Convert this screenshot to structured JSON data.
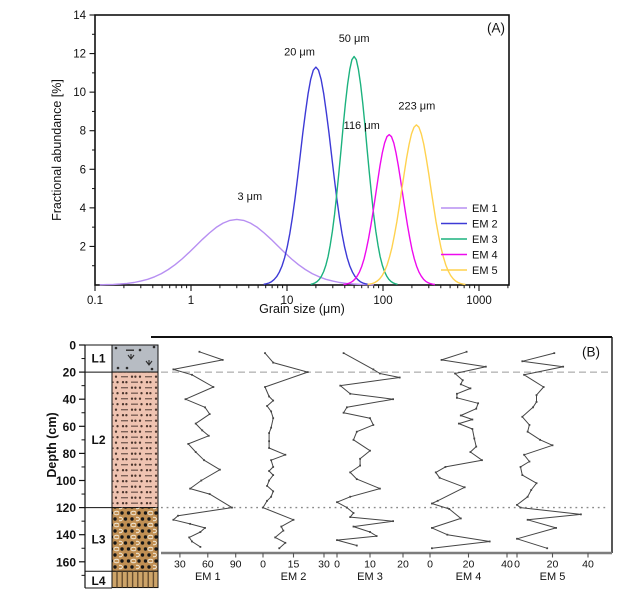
{
  "figure": {
    "panel_a_label": "(A)",
    "panel_b_label": "(B)"
  },
  "chart_data": [
    {
      "id": "panel_a",
      "type": "line",
      "title": "",
      "xlabel": "Grain size (μm)",
      "ylabel": "Fractional abundance [%]",
      "x_scale": "log",
      "xlim": [
        0.1,
        2000
      ],
      "ylim": [
        0,
        14
      ],
      "x_ticks": [
        "0.1",
        "1",
        "10",
        "100",
        "1000"
      ],
      "y_ticks": [
        2,
        4,
        6,
        8,
        10,
        12,
        14
      ],
      "grid": false,
      "legend_position": "inside-right",
      "series": [
        {
          "name": "EM 1",
          "color": "#b78ff2",
          "peak_um": 3,
          "peak_label": "3 μm",
          "height_pct": 3.4,
          "sigma_log10": 0.42,
          "label_pos": [
            4.1,
            4.4
          ]
        },
        {
          "name": "EM 2",
          "color": "#3d3ad6",
          "peak_um": 20,
          "peak_label": "20 μm",
          "height_pct": 11.3,
          "sigma_log10": 0.16,
          "label_pos": [
            13.5,
            11.9
          ]
        },
        {
          "name": "EM 3",
          "color": "#1cb27e",
          "peak_um": 50,
          "peak_label": "50 μm",
          "height_pct": 11.85,
          "sigma_log10": 0.133,
          "label_pos": [
            50,
            12.6
          ]
        },
        {
          "name": "EM 4",
          "color": "#ee0aee",
          "peak_um": 116,
          "peak_label": "116 μm",
          "height_pct": 7.8,
          "sigma_log10": 0.14,
          "label_pos": [
            60,
            8.1
          ]
        },
        {
          "name": "EM 5",
          "color": "#ffd24f",
          "peak_um": 223,
          "peak_label": "223 μm",
          "height_pct": 8.3,
          "sigma_log10": 0.15,
          "label_pos": [
            225,
            9.1
          ]
        }
      ]
    },
    {
      "id": "panel_b",
      "type": "line-depth-profiles",
      "ylabel": "Depth (cm)",
      "depth_axis_ticks": [
        0,
        20,
        40,
        60,
        80,
        100,
        120,
        140,
        160
      ],
      "depth_minor_step": 10,
      "boundary_lines_cm": [
        20,
        120
      ],
      "stratigraphy": {
        "layers": [
          {
            "name": "L1",
            "top_cm": 0,
            "bottom_cm": 20,
            "color": "#b7bcc3",
            "pattern": "gray-root-symbols"
          },
          {
            "name": "L2",
            "top_cm": 20,
            "bottom_cm": 120,
            "color": "#efc3b1",
            "pattern": "dots-and-dashes"
          },
          {
            "name": "L3",
            "top_cm": 120,
            "bottom_cm": 167,
            "color": "#c08f53",
            "pattern": "pebbles-dots"
          },
          {
            "name": "L4",
            "top_cm": 167,
            "bottom_cm": 179,
            "color": "#cda469",
            "pattern": "vertical-lines"
          }
        ]
      },
      "profiles": [
        {
          "name": "EM 1",
          "axis_ticks": [
            30,
            60,
            90
          ],
          "points": [
            [
              5,
              51
            ],
            [
              11,
              76
            ],
            [
              18,
              23
            ],
            [
              22,
              43
            ],
            [
              31,
              66
            ],
            [
              40,
              36
            ],
            [
              46,
              57
            ],
            [
              51,
              62
            ],
            [
              58,
              47
            ],
            [
              63,
              54
            ],
            [
              67,
              61
            ],
            [
              73,
              39
            ],
            [
              79,
              47
            ],
            [
              85,
              56
            ],
            [
              92,
              73
            ],
            [
              100,
              53
            ],
            [
              106,
              41
            ],
            [
              110,
              62
            ],
            [
              120,
              86
            ],
            [
              126,
              28
            ],
            [
              129,
              23
            ],
            [
              132,
              41
            ],
            [
              135,
              57
            ],
            [
              138,
              52
            ],
            [
              142,
              40
            ],
            [
              145,
              43
            ],
            [
              149,
              52
            ]
          ]
        },
        {
          "name": "EM 2",
          "axis_ticks": [
            0,
            15,
            30
          ],
          "points": [
            [
              6,
              1
            ],
            [
              13,
              5
            ],
            [
              20,
              22
            ],
            [
              31,
              1
            ],
            [
              38,
              3
            ],
            [
              41,
              5
            ],
            [
              45,
              2
            ],
            [
              49,
              4
            ],
            [
              54,
              5
            ],
            [
              61,
              4
            ],
            [
              65,
              3
            ],
            [
              71,
              3
            ],
            [
              76,
              3
            ],
            [
              81,
              11
            ],
            [
              85,
              4
            ],
            [
              90,
              5
            ],
            [
              93,
              3
            ],
            [
              96,
              5
            ],
            [
              100,
              3
            ],
            [
              104,
              2
            ],
            [
              108,
              5
            ],
            [
              112,
              4
            ],
            [
              115,
              2
            ],
            [
              120,
              0
            ],
            [
              129,
              15
            ],
            [
              134,
              9
            ],
            [
              137,
              10
            ],
            [
              142,
              6
            ],
            [
              146,
              11
            ],
            [
              150,
              8
            ]
          ]
        },
        {
          "name": "EM 3",
          "axis_ticks": [
            0,
            10,
            20
          ],
          "points": [
            [
              6,
              2
            ],
            [
              18,
              11
            ],
            [
              21,
              13
            ],
            [
              24,
              19
            ],
            [
              30,
              1
            ],
            [
              36,
              4
            ],
            [
              40,
              17
            ],
            [
              46,
              3
            ],
            [
              50,
              2
            ],
            [
              54,
              10
            ],
            [
              59,
              11
            ],
            [
              64,
              6
            ],
            [
              70,
              5
            ],
            [
              78,
              10
            ],
            [
              84,
              7
            ],
            [
              89,
              7
            ],
            [
              94,
              4
            ],
            [
              99,
              6
            ],
            [
              106,
              13
            ],
            [
              112,
              4
            ],
            [
              116,
              0
            ],
            [
              120,
              3
            ],
            [
              124,
              5
            ],
            [
              127,
              4
            ],
            [
              130,
              17
            ],
            [
              134,
              5
            ],
            [
              138,
              10
            ],
            [
              141,
              12
            ],
            [
              144,
              0
            ],
            [
              148,
              6
            ]
          ]
        },
        {
          "name": "EM 4",
          "axis_ticks": [
            0,
            20,
            40
          ],
          "points": [
            [
              5,
              19
            ],
            [
              11,
              6
            ],
            [
              16,
              29
            ],
            [
              21,
              13
            ],
            [
              26,
              17
            ],
            [
              29,
              16
            ],
            [
              32,
              21
            ],
            [
              36,
              14
            ],
            [
              39,
              14
            ],
            [
              43,
              25
            ],
            [
              47,
              24
            ],
            [
              52,
              16
            ],
            [
              55,
              22
            ],
            [
              58,
              15
            ],
            [
              62,
              22
            ],
            [
              69,
              23
            ],
            [
              75,
              24
            ],
            [
              79,
              21
            ],
            [
              85,
              27
            ],
            [
              90,
              8
            ],
            [
              94,
              3
            ],
            [
              98,
              5
            ],
            [
              105,
              18
            ],
            [
              115,
              4
            ],
            [
              117,
              1
            ],
            [
              121,
              10
            ],
            [
              128,
              16
            ],
            [
              135,
              1
            ],
            [
              140,
              9
            ],
            [
              145,
              31
            ],
            [
              150,
              1
            ]
          ]
        },
        {
          "name": "EM 5",
          "axis_ticks": [
            0,
            20,
            40
          ],
          "points": [
            [
              6,
              21
            ],
            [
              12,
              3
            ],
            [
              16,
              26
            ],
            [
              22,
              4
            ],
            [
              31,
              15
            ],
            [
              37,
              11
            ],
            [
              42,
              11
            ],
            [
              46,
              9
            ],
            [
              53,
              3
            ],
            [
              59,
              7
            ],
            [
              64,
              6
            ],
            [
              70,
              13
            ],
            [
              74,
              20
            ],
            [
              81,
              4
            ],
            [
              86,
              7
            ],
            [
              90,
              2
            ],
            [
              96,
              3
            ],
            [
              102,
              11
            ],
            [
              107,
              8
            ],
            [
              112,
              6
            ],
            [
              118,
              0
            ],
            [
              120,
              2
            ],
            [
              125,
              36
            ],
            [
              129,
              6
            ],
            [
              135,
              22
            ],
            [
              143,
              0
            ],
            [
              150,
              17
            ]
          ]
        }
      ]
    }
  ]
}
